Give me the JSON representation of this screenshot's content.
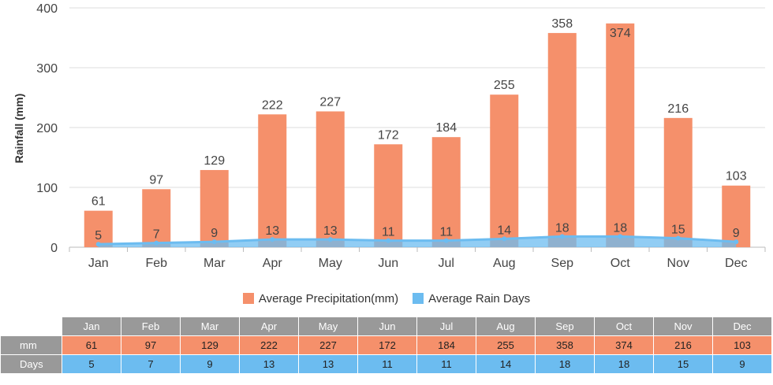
{
  "chart_data": {
    "type": "bar",
    "categories": [
      "Jan",
      "Feb",
      "Mar",
      "Apr",
      "May",
      "Jun",
      "Jul",
      "Aug",
      "Sep",
      "Oct",
      "Nov",
      "Dec"
    ],
    "series": [
      {
        "name": "Average Precipitation(mm)",
        "type": "bar",
        "color": "#f5906b",
        "values": [
          61,
          97,
          129,
          222,
          227,
          172,
          184,
          255,
          358,
          374,
          216,
          103
        ]
      },
      {
        "name": "Average Rain Days",
        "type": "area",
        "color": "#6cbcf0",
        "values": [
          5,
          7,
          9,
          13,
          13,
          11,
          11,
          14,
          18,
          18,
          15,
          9
        ]
      }
    ],
    "ylabel": "Rainfall (mm)",
    "ylim": [
      0,
      400
    ],
    "yticks": [
      0,
      100,
      200,
      300,
      400
    ],
    "grid": true,
    "legend": "bottom"
  },
  "table": {
    "row_labels": [
      "mm",
      "Days"
    ]
  }
}
